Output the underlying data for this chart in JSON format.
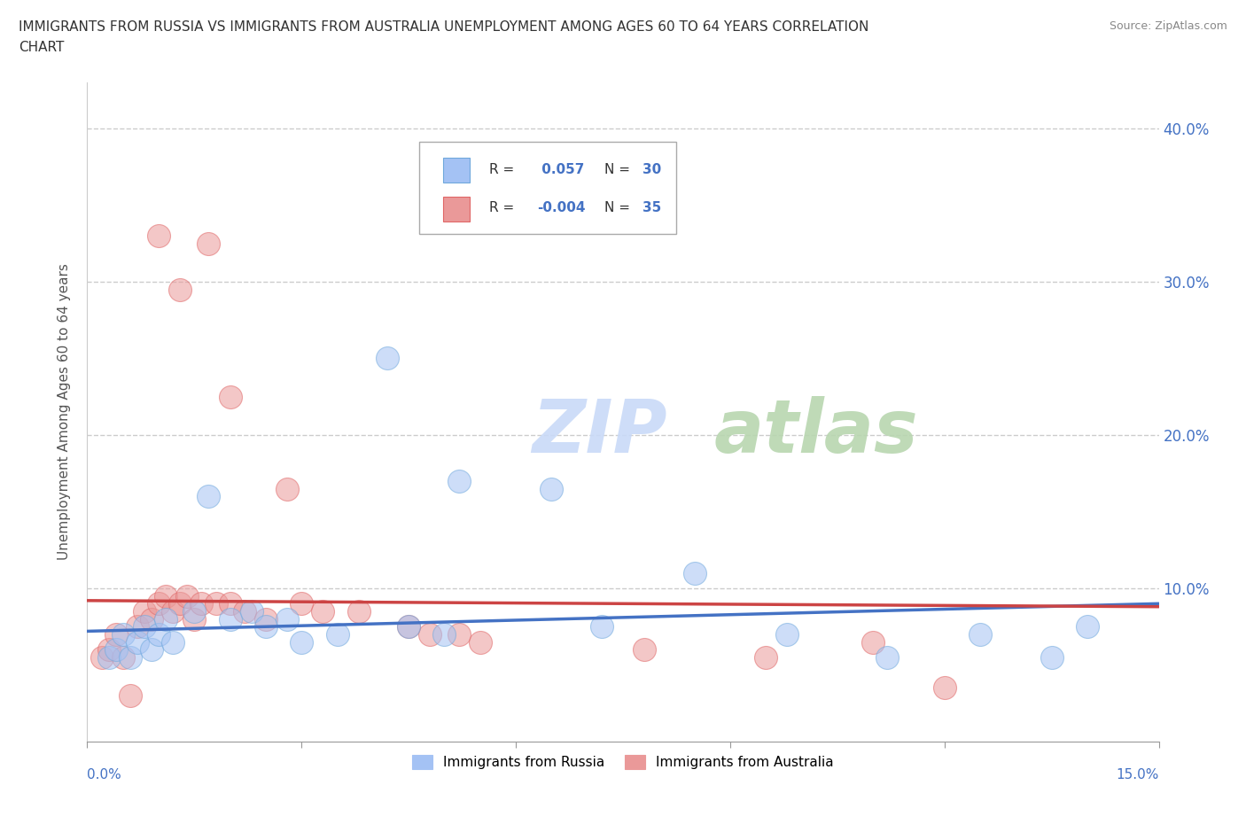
{
  "title_line1": "IMMIGRANTS FROM RUSSIA VS IMMIGRANTS FROM AUSTRALIA UNEMPLOYMENT AMONG AGES 60 TO 64 YEARS CORRELATION",
  "title_line2": "CHART",
  "source": "Source: ZipAtlas.com",
  "ylabel": "Unemployment Among Ages 60 to 64 years",
  "xlim": [
    0.0,
    15.0
  ],
  "ylim": [
    0.0,
    43.0
  ],
  "yticks": [
    10,
    20,
    30,
    40
  ],
  "ytick_labels": [
    "10.0%",
    "20.0%",
    "30.0%",
    "40.0%"
  ],
  "xtick_positions": [
    0,
    3,
    6,
    9,
    12,
    15
  ],
  "russia_color": "#a4c2f4",
  "australia_color": "#ea9999",
  "russia_edge_color": "#6fa8dc",
  "australia_edge_color": "#e06666",
  "russia_R": 0.057,
  "russia_N": 30,
  "australia_R": -0.004,
  "australia_N": 35,
  "russia_scatter_x": [
    0.3,
    0.4,
    0.5,
    0.6,
    0.7,
    0.8,
    0.9,
    1.0,
    1.1,
    1.2,
    1.5,
    1.7,
    2.0,
    2.3,
    2.5,
    2.8,
    3.0,
    3.5,
    4.2,
    4.5,
    5.0,
    5.2,
    6.5,
    7.2,
    8.5,
    9.8,
    11.2,
    12.5,
    13.5,
    14.0
  ],
  "russia_scatter_y": [
    5.5,
    6.0,
    7.0,
    5.5,
    6.5,
    7.5,
    6.0,
    7.0,
    8.0,
    6.5,
    8.5,
    16.0,
    8.0,
    8.5,
    7.5,
    8.0,
    6.5,
    7.0,
    25.0,
    7.5,
    7.0,
    17.0,
    16.5,
    7.5,
    11.0,
    7.0,
    5.5,
    7.0,
    5.5,
    7.5
  ],
  "australia_scatter_x": [
    0.2,
    0.3,
    0.4,
    0.5,
    0.6,
    0.7,
    0.8,
    0.9,
    1.0,
    1.1,
    1.2,
    1.3,
    1.4,
    1.5,
    1.6,
    1.7,
    1.8,
    2.0,
    2.2,
    2.5,
    2.8,
    3.0,
    3.3,
    3.8,
    4.5,
    5.2,
    1.0,
    1.3,
    2.0,
    4.8,
    5.5,
    7.8,
    9.5,
    11.0,
    12.0
  ],
  "australia_scatter_y": [
    5.5,
    6.0,
    7.0,
    5.5,
    3.0,
    7.5,
    8.5,
    8.0,
    9.0,
    9.5,
    8.5,
    9.0,
    9.5,
    8.0,
    9.0,
    32.5,
    9.0,
    9.0,
    8.5,
    8.0,
    16.5,
    9.0,
    8.5,
    8.5,
    7.5,
    7.0,
    33.0,
    29.5,
    22.5,
    7.0,
    6.5,
    6.0,
    5.5,
    6.5,
    3.5
  ],
  "watermark_ZIP": "ZIP",
  "watermark_atlas": "atlas",
  "watermark_color_ZIP": "#c9daf8",
  "watermark_color_atlas": "#b6d7a8",
  "background_color": "#ffffff",
  "russia_trend_y_start": 7.2,
  "russia_trend_y_end": 9.0,
  "australia_trend_y_start": 9.2,
  "australia_trend_y_end": 8.8,
  "trend_blue": "#4472c4",
  "trend_pink": "#cc4444"
}
